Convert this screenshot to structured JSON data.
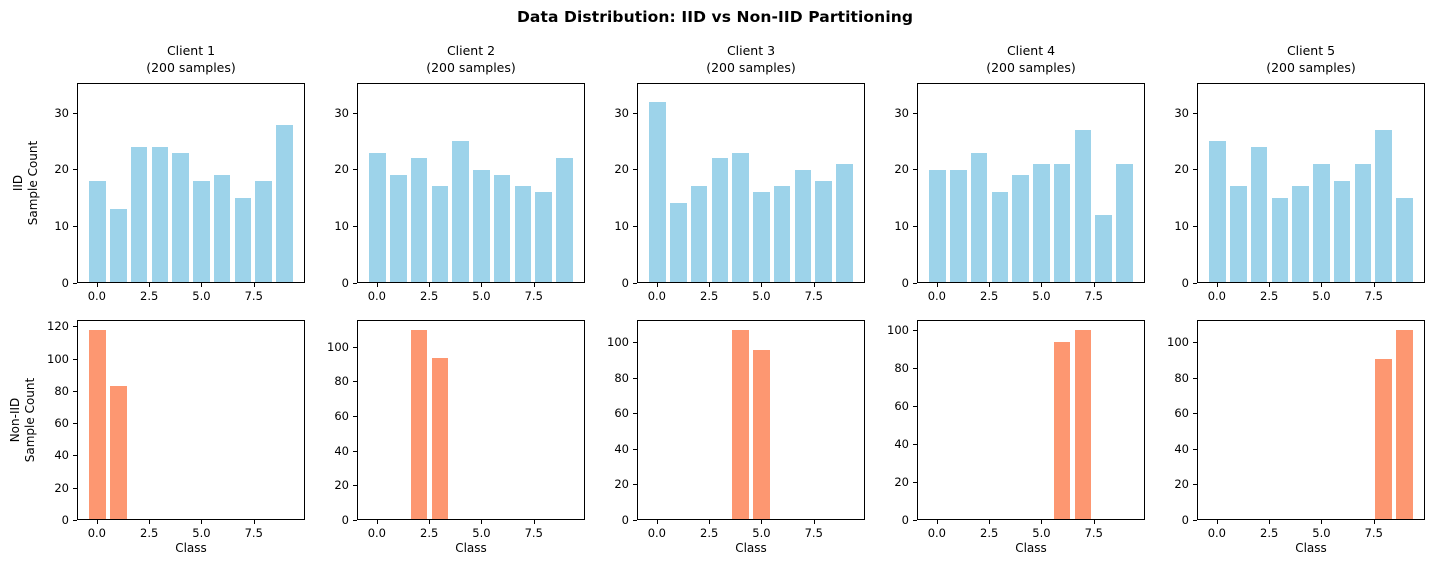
{
  "figure": {
    "title": "Data Distribution: IID vs Non-IID Partitioning",
    "background_color": "#ffffff",
    "text_color": "#000000",
    "iid_bar_color": "#9DD3EA",
    "noniid_bar_color": "#FD9771"
  },
  "chart_data": {
    "type": "bar",
    "suptitle": "Data Distribution: IID vs Non-IID Partitioning",
    "grid": false,
    "legend": false,
    "classes": [
      0,
      1,
      2,
      3,
      4,
      5,
      6,
      7,
      8,
      9
    ],
    "bar_width": 0.8,
    "xlim": [
      -0.95,
      9.95
    ],
    "x_tick_values": [
      0,
      2.5,
      5,
      7.5
    ],
    "x_tick_labels": [
      "0.0",
      "2.5",
      "5.0",
      "7.5"
    ],
    "xlabel": "Class",
    "rows": [
      {
        "name": "IID",
        "ylabel_lines": "IID\nSample Count",
        "bar_color": "#9DD3EA",
        "subplots": [
          {
            "title": "Client 1",
            "subtitle": "(200 samples)",
            "values": [
              18,
              13,
              24,
              24,
              23,
              18,
              19,
              15,
              18,
              28
            ],
            "ylim": [
              0,
              35.2
            ],
            "yticks": [
              0,
              10,
              20,
              30
            ]
          },
          {
            "title": "Client 2",
            "subtitle": "(200 samples)",
            "values": [
              23,
              19,
              22,
              17,
              25,
              20,
              19,
              17,
              16,
              22
            ],
            "ylim": [
              0,
              35.2
            ],
            "yticks": [
              0,
              10,
              20,
              30
            ]
          },
          {
            "title": "Client 3",
            "subtitle": "(200 samples)",
            "values": [
              32,
              14,
              17,
              22,
              23,
              16,
              17,
              20,
              18,
              21
            ],
            "ylim": [
              0,
              35.2
            ],
            "yticks": [
              0,
              10,
              20,
              30
            ]
          },
          {
            "title": "Client 4",
            "subtitle": "(200 samples)",
            "values": [
              20,
              20,
              23,
              16,
              19,
              21,
              21,
              27,
              12,
              21
            ],
            "ylim": [
              0,
              35.2
            ],
            "yticks": [
              0,
              10,
              20,
              30
            ]
          },
          {
            "title": "Client 5",
            "subtitle": "(200 samples)",
            "values": [
              25,
              17,
              24,
              15,
              17,
              21,
              18,
              21,
              27,
              15
            ],
            "ylim": [
              0,
              35.2
            ],
            "yticks": [
              0,
              10,
              20,
              30
            ]
          }
        ]
      },
      {
        "name": "Non-IID",
        "ylabel_lines": "Non-IID\nSample Count",
        "bar_color": "#FD9771",
        "xlabel": "Class",
        "subplots": [
          {
            "values": [
              118,
              83,
              0,
              0,
              0,
              0,
              0,
              0,
              0,
              0
            ],
            "ylim": [
              0,
              123.9
            ],
            "yticks": [
              0,
              20,
              40,
              60,
              80,
              100,
              120
            ]
          },
          {
            "values": [
              0,
              0,
              110,
              94,
              0,
              0,
              0,
              0,
              0,
              0
            ],
            "ylim": [
              0,
              115.5
            ],
            "yticks": [
              0,
              20,
              40,
              60,
              80,
              100
            ]
          },
          {
            "values": [
              0,
              0,
              0,
              0,
              107,
              96,
              0,
              0,
              0,
              0
            ],
            "ylim": [
              0,
              112.35
            ],
            "yticks": [
              0,
              20,
              40,
              60,
              80,
              100
            ]
          },
          {
            "values": [
              0,
              0,
              0,
              0,
              0,
              0,
              94,
              100,
              0,
              0
            ],
            "ylim": [
              0,
              105
            ],
            "yticks": [
              0,
              20,
              40,
              60,
              80,
              100
            ]
          },
          {
            "values": [
              0,
              0,
              0,
              0,
              0,
              0,
              0,
              0,
              91,
              107
            ],
            "ylim": [
              0,
              112.35
            ],
            "yticks": [
              0,
              20,
              40,
              60,
              80,
              100
            ]
          }
        ]
      }
    ]
  }
}
